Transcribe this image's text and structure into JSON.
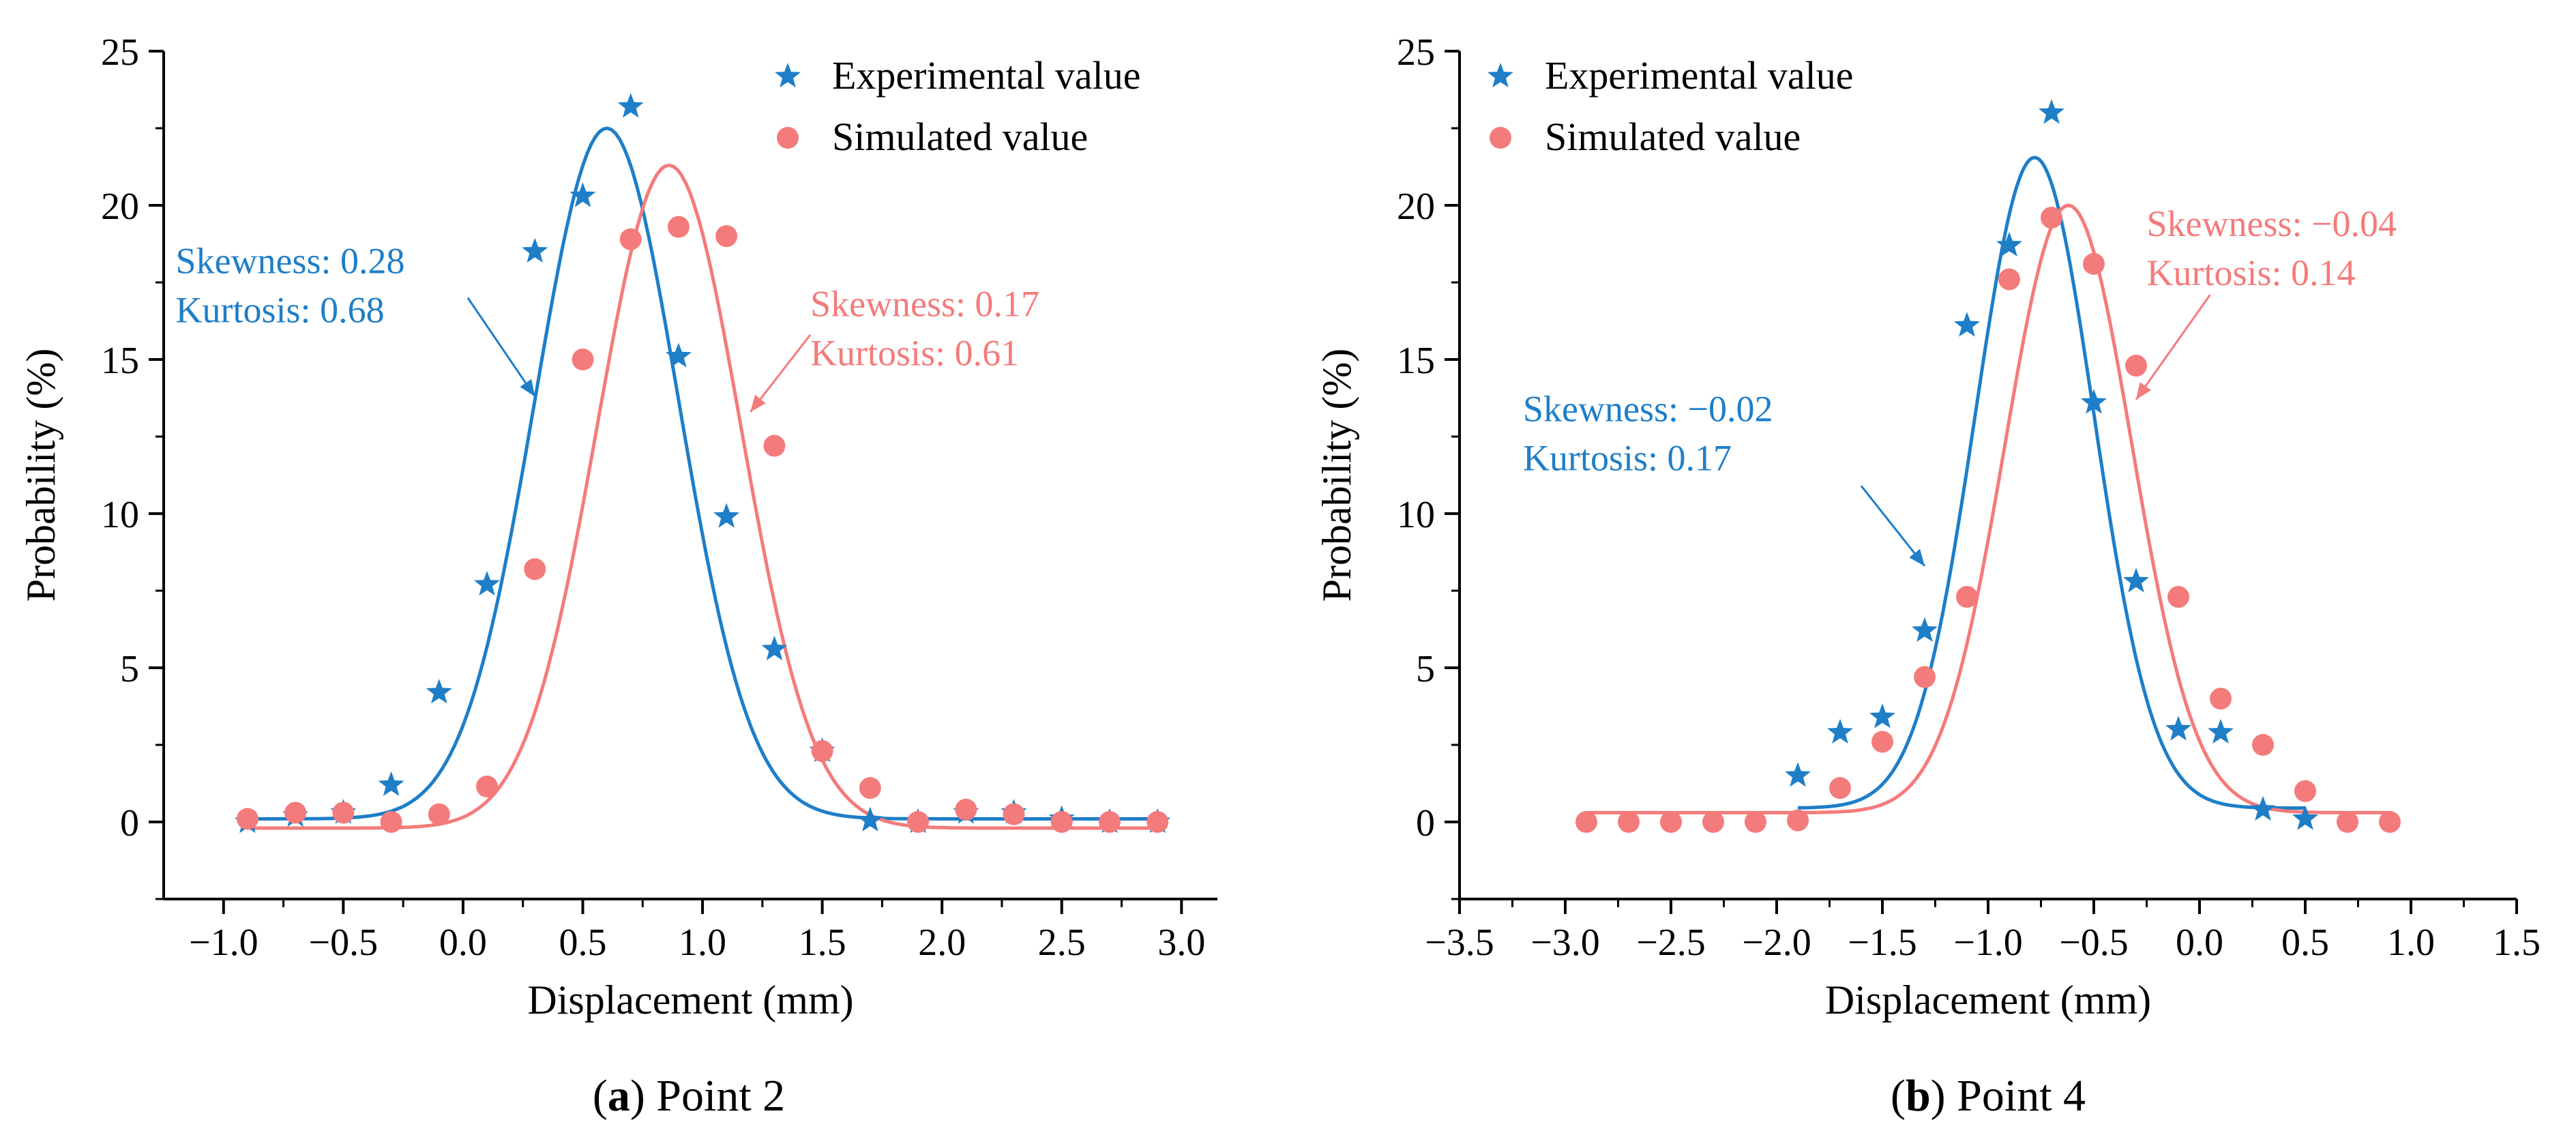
{
  "colors": {
    "experimental": "#1E7EC8",
    "simulated": "#F47B7B",
    "axis": "#000000"
  },
  "chart_data": [
    {
      "type": "scatter",
      "caption_letter": "a",
      "caption_text": ") Point 2",
      "caption_paren": "(",
      "xlabel": "Displacement (mm)",
      "ylabel": "Probability (%)",
      "xlim": [
        -1.25,
        3.15
      ],
      "ylim": [
        -2.5,
        25
      ],
      "xticks": [
        -1.0,
        -0.5,
        0.0,
        0.5,
        1.0,
        1.5,
        2.0,
        2.5,
        3.0
      ],
      "xtick_labels": [
        "−1.0",
        "−0.5",
        "0.0",
        "0.5",
        "1.0",
        "1.5",
        "2.0",
        "2.5",
        "3.0"
      ],
      "yticks": [
        0,
        5,
        10,
        15,
        20,
        25
      ],
      "ytick_labels": [
        "0",
        "5",
        "10",
        "15",
        "20",
        "25"
      ],
      "legend": {
        "position": "top-right",
        "entries": [
          "Experimental value",
          "Simulated value"
        ]
      },
      "series": [
        {
          "name": "Experimental value",
          "marker": "star",
          "x": [
            -0.9,
            -0.7,
            -0.5,
            -0.3,
            -0.1,
            0.1,
            0.3,
            0.5,
            0.7,
            0.9,
            1.1,
            1.3,
            1.5,
            1.7,
            1.9,
            2.1,
            2.3,
            2.5,
            2.7,
            2.9
          ],
          "y": [
            0.0,
            0.2,
            0.3,
            1.2,
            4.2,
            7.7,
            18.5,
            20.3,
            23.2,
            15.1,
            9.9,
            5.6,
            2.3,
            0.05,
            0.0,
            0.3,
            0.3,
            0.1,
            0.0,
            0.0
          ],
          "fit": {
            "base": 0.1,
            "amplitude": 22.4,
            "center": 0.6,
            "sigma": 0.3
          }
        },
        {
          "name": "Simulated value",
          "marker": "circle",
          "x": [
            -0.9,
            -0.7,
            -0.5,
            -0.3,
            -0.1,
            0.1,
            0.3,
            0.5,
            0.7,
            0.9,
            1.1,
            1.3,
            1.5,
            1.7,
            1.9,
            2.1,
            2.3,
            2.5,
            2.7,
            2.9
          ],
          "y": [
            0.1,
            0.3,
            0.3,
            0.0,
            0.25,
            1.15,
            8.2,
            15.0,
            18.9,
            19.3,
            19.0,
            12.2,
            2.3,
            1.1,
            0.0,
            0.4,
            0.25,
            0.0,
            0.0,
            0.0
          ],
          "fit": {
            "base": -0.2,
            "amplitude": 21.5,
            "center": 0.86,
            "sigma": 0.3
          }
        }
      ],
      "annotations": [
        {
          "series": 0,
          "lines": [
            "Skewness: 0.28",
            "Kurtosis: 0.68"
          ],
          "text_pos": [
            -1.2,
            17.8
          ],
          "arrow_from": [
            0.02,
            17.0
          ],
          "arrow_to": [
            0.3,
            13.8
          ]
        },
        {
          "series": 1,
          "lines": [
            "Skewness: 0.17",
            "Kurtosis: 0.61"
          ],
          "text_pos": [
            1.45,
            16.4
          ],
          "arrow_from": [
            1.45,
            15.8
          ],
          "arrow_to": [
            1.2,
            13.3
          ]
        }
      ]
    },
    {
      "type": "scatter",
      "caption_letter": "b",
      "caption_text": ") Point 4",
      "caption_paren": "(",
      "xlabel": "Displacement (mm)",
      "ylabel": "Probability (%)",
      "xlim": [
        -3.5,
        1.5
      ],
      "ylim": [
        -2.5,
        25
      ],
      "xticks": [
        -3.5,
        -3.0,
        -2.5,
        -2.0,
        -1.5,
        -1.0,
        -0.5,
        0.0,
        0.5,
        1.0,
        1.5
      ],
      "xtick_labels": [
        "−3.5",
        "−3.0",
        "−2.5",
        "−2.0",
        "−1.5",
        "−1.0",
        "−0.5",
        "0.0",
        "0.5",
        "1.0",
        "1.5"
      ],
      "yticks": [
        0,
        5,
        10,
        15,
        20,
        25
      ],
      "ytick_labels": [
        "0",
        "5",
        "10",
        "15",
        "20",
        "25"
      ],
      "legend": {
        "position": "top-left",
        "entries": [
          "Experimental value",
          "Simulated value"
        ]
      },
      "series": [
        {
          "name": "Experimental value",
          "marker": "star",
          "x": [
            -1.9,
            -1.7,
            -1.5,
            -1.3,
            -1.1,
            -0.9,
            -0.7,
            -0.5,
            -0.3,
            -0.1,
            0.1,
            0.3,
            0.5
          ],
          "y": [
            1.5,
            2.9,
            3.4,
            6.2,
            16.1,
            18.7,
            23.0,
            13.6,
            7.8,
            3.0,
            2.9,
            0.4,
            0.1
          ],
          "fit": {
            "base": 0.45,
            "amplitude": 21.1,
            "center": -0.78,
            "sigma": 0.28
          }
        },
        {
          "name": "Simulated value",
          "marker": "circle",
          "x": [
            -2.9,
            -2.7,
            -2.5,
            -2.3,
            -2.1,
            -1.9,
            -1.7,
            -1.5,
            -1.3,
            -1.1,
            -0.9,
            -0.7,
            -0.5,
            -0.3,
            -0.1,
            0.1,
            0.3,
            0.5,
            0.7,
            0.9
          ],
          "y": [
            0.0,
            0.0,
            0.0,
            0.0,
            0.0,
            0.05,
            1.1,
            2.6,
            4.7,
            7.3,
            17.6,
            19.6,
            18.1,
            14.8,
            7.3,
            4.0,
            2.5,
            1.0,
            0.0,
            0.0
          ],
          "fit": {
            "base": 0.3,
            "amplitude": 19.7,
            "center": -0.62,
            "sigma": 0.3
          }
        }
      ],
      "annotations": [
        {
          "series": 0,
          "lines": [
            "Skewness: −0.02",
            "Kurtosis: 0.17"
          ],
          "text_pos": [
            -3.2,
            13.0
          ],
          "arrow_from": [
            -1.6,
            10.9
          ],
          "arrow_to": [
            -1.3,
            8.3
          ]
        },
        {
          "series": 1,
          "lines": [
            "Skewness: −0.04",
            "Kurtosis: 0.14"
          ],
          "text_pos": [
            -0.25,
            19.0
          ],
          "arrow_from": [
            0.05,
            17.1
          ],
          "arrow_to": [
            -0.3,
            13.7
          ]
        }
      ]
    }
  ]
}
